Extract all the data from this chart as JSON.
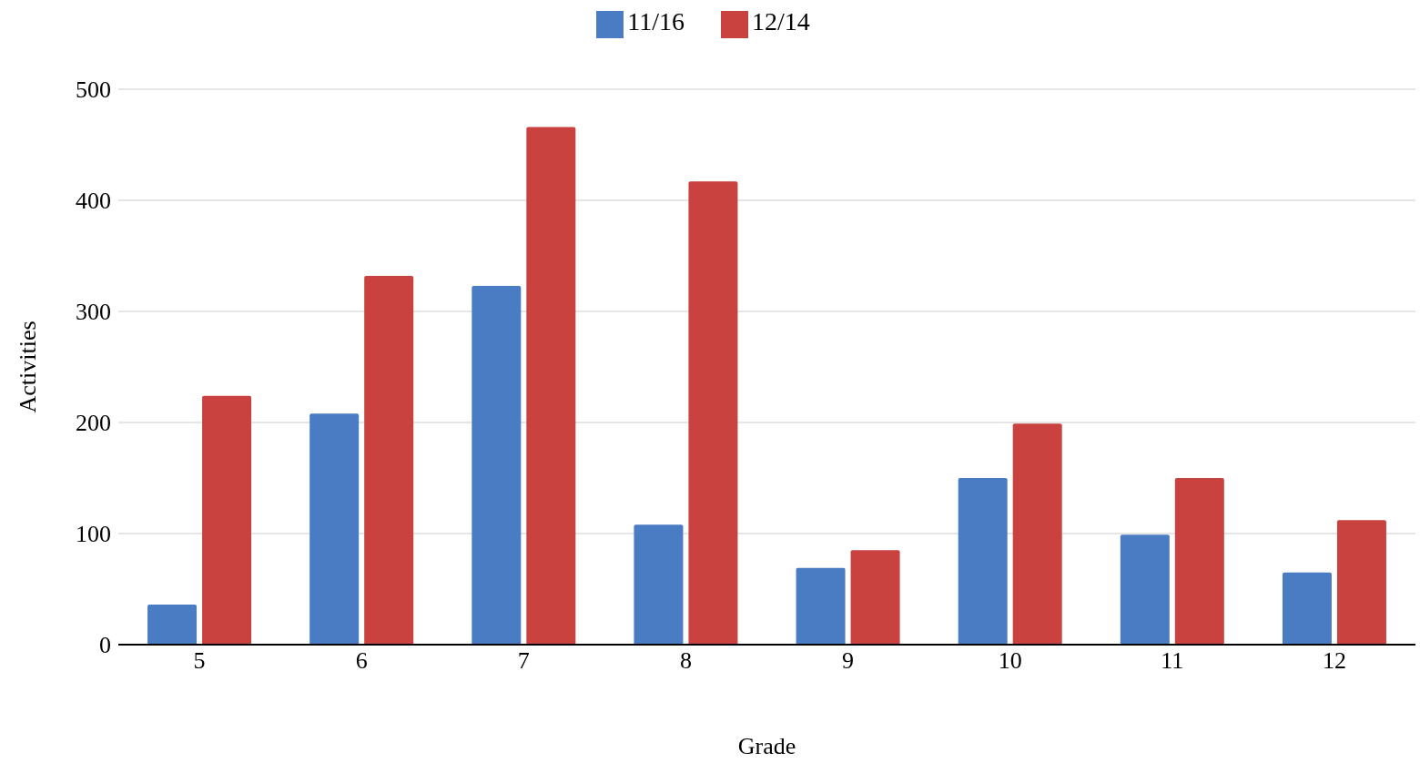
{
  "chart_data": {
    "type": "bar",
    "xlabel": "Grade",
    "ylabel": "Activities",
    "categories": [
      "5",
      "6",
      "7",
      "8",
      "9",
      "10",
      "11",
      "12"
    ],
    "series": [
      {
        "name": "11/16",
        "color": "#4a7cc4",
        "values": [
          36,
          208,
          323,
          108,
          69,
          150,
          99,
          65
        ]
      },
      {
        "name": "12/14",
        "color": "#c9423f",
        "values": [
          224,
          332,
          466,
          417,
          85,
          199,
          150,
          112
        ]
      }
    ],
    "ylim": [
      0,
      500
    ],
    "yticks": [
      0,
      100,
      200,
      300,
      400,
      500
    ],
    "grid": "y",
    "legend": "top"
  }
}
